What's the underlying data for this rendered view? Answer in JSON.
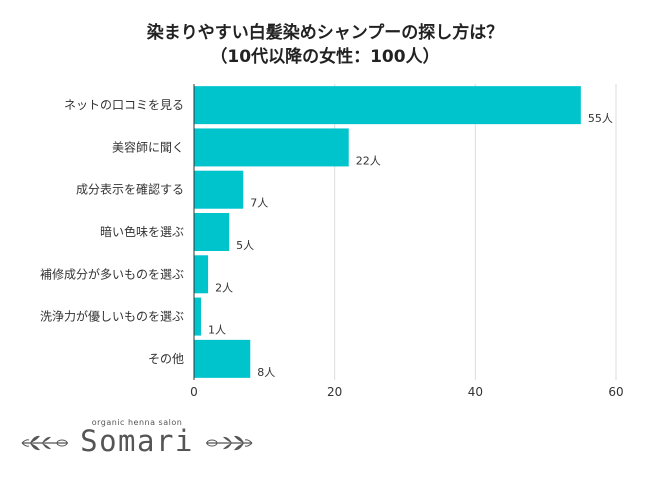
{
  "title_line1": "染まりやすい白髪染めシャンプーの探し方は？",
  "title_line2": "（10代以降の女性：100人）",
  "colors": {
    "bar": "#00c4cc",
    "grid": "#dddddd",
    "axis": "#333333",
    "text": "#333333",
    "logo": "#555555"
  },
  "chart_data": {
    "type": "bar",
    "orientation": "horizontal",
    "categories": [
      "ネットの口コミを見る",
      "美容師に聞く",
      "成分表示を確認する",
      "暗い色味を選ぶ",
      "補修成分が多いものを選ぶ",
      "洗浄力が優しいものを選ぶ",
      "その他"
    ],
    "values": [
      55,
      22,
      7,
      5,
      2,
      1,
      8
    ],
    "data_labels": [
      "55人",
      "22人",
      "7人",
      "5人",
      "2人",
      "1人",
      "8人"
    ],
    "xlim": [
      0,
      60
    ],
    "xticks": [
      "0",
      "20",
      "40",
      "60"
    ],
    "grid": true
  },
  "logo": {
    "small_text": "organic henna salon",
    "main_text": "Somari"
  }
}
